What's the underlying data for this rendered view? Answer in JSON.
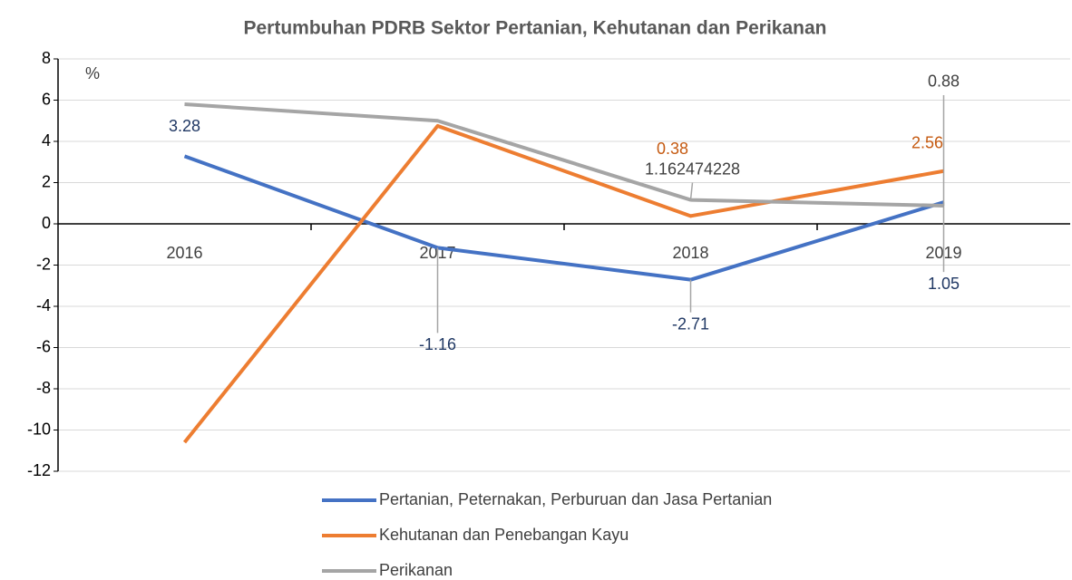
{
  "chart_data": {
    "type": "line",
    "title": "Pertumbuhan PDRB Sektor Pertanian, Kehutanan dan Perikanan",
    "ylabel": "%",
    "categories": [
      "2016",
      "2017",
      "2018",
      "2019"
    ],
    "series": [
      {
        "name": "Pertanian, Peternakan, Perburuan dan Jasa Pertanian",
        "color": "#4472c4",
        "label_color": "#203864",
        "values": [
          3.28,
          -1.16,
          -2.71,
          1.05
        ],
        "value_labels": [
          "3.28",
          "-1.16",
          "-2.71",
          "1.05"
        ]
      },
      {
        "name": "Kehutanan dan Penebangan Kayu",
        "color": "#ed7d31",
        "label_color": "#c55a11",
        "values": [
          -10.6,
          4.75,
          0.38,
          2.56
        ],
        "value_labels": [
          null,
          null,
          "0.38",
          "2.56"
        ]
      },
      {
        "name": "Perikanan",
        "color": "#a5a5a5",
        "label_color": "#404040",
        "values": [
          5.8,
          5.0,
          1.162474228,
          0.88
        ],
        "value_labels": [
          null,
          null,
          "1.162474228",
          "0.88"
        ]
      }
    ],
    "ylim": [
      -12,
      8
    ],
    "yticks": [
      -12,
      -10,
      -8,
      -6,
      -4,
      -2,
      0,
      2,
      4,
      6,
      8
    ],
    "grid": true
  }
}
